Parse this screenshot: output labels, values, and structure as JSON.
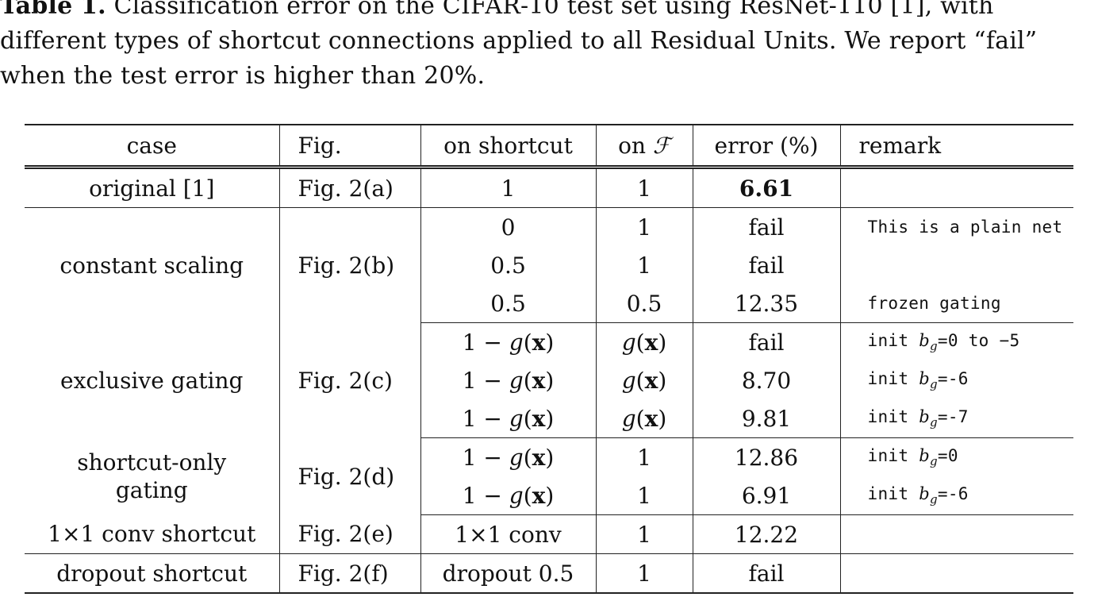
{
  "caption": {
    "label": "Table 1.",
    "line1": " Classification error on the CIFAR-10 test set using ResNet-110 [1], with",
    "line2": "different types of shortcut connections applied to all Residual Units. We report “fail”",
    "line3": "when the test error is higher than 20%."
  },
  "table": {
    "headers": {
      "case": "case",
      "fig": "Fig.",
      "on_shortcut": "on shortcut",
      "on_f_prefix": "on ",
      "on_f_symbol": "ℱ",
      "error": "error (%)",
      "remark": "remark"
    },
    "groups": [
      {
        "case": "original [1]",
        "fig": "Fig. 2(a)",
        "rows": [
          {
            "shortcut": "1",
            "f": "1",
            "error": "6.61",
            "remark": ""
          }
        ]
      },
      {
        "case": "constant scaling",
        "fig": "Fig. 2(b)",
        "rows": [
          {
            "shortcut": "0",
            "f": "1",
            "error": "fail",
            "remark": "This is a plain net"
          },
          {
            "shortcut": "0.5",
            "f": "1",
            "error": "fail",
            "remark": ""
          },
          {
            "shortcut": "0.5",
            "f": "0.5",
            "error": "12.35",
            "remark": "frozen gating"
          }
        ]
      },
      {
        "case": "exclusive gating",
        "fig": "Fig. 2(c)",
        "rows": [
          {
            "shortcut": "1 − g(x)",
            "f": "g(x)",
            "error": "fail",
            "remark": "init b_g=0 to −5"
          },
          {
            "shortcut": "1 − g(x)",
            "f": "g(x)",
            "error": "8.70",
            "remark": "init b_g=-6"
          },
          {
            "shortcut": "1 − g(x)",
            "f": "g(x)",
            "error": "9.81",
            "remark": "init b_g=-7"
          }
        ]
      },
      {
        "case": "shortcut-only gating",
        "fig": "Fig. 2(d)",
        "rows": [
          {
            "shortcut": "1 − g(x)",
            "f": "1",
            "error": "12.86",
            "remark": "init b_g=0"
          },
          {
            "shortcut": "1 − g(x)",
            "f": "1",
            "error": "6.91",
            "remark": "init b_g=-6"
          }
        ]
      },
      {
        "case": "1×1 conv shortcut",
        "fig": "Fig. 2(e)",
        "rows": [
          {
            "shortcut": "1×1 conv",
            "f": "1",
            "error": "12.22",
            "remark": ""
          }
        ]
      },
      {
        "case": "dropout shortcut",
        "fig": "Fig. 2(f)",
        "rows": [
          {
            "shortcut": "dropout 0.5",
            "f": "1",
            "error": "fail",
            "remark": ""
          }
        ]
      }
    ]
  }
}
